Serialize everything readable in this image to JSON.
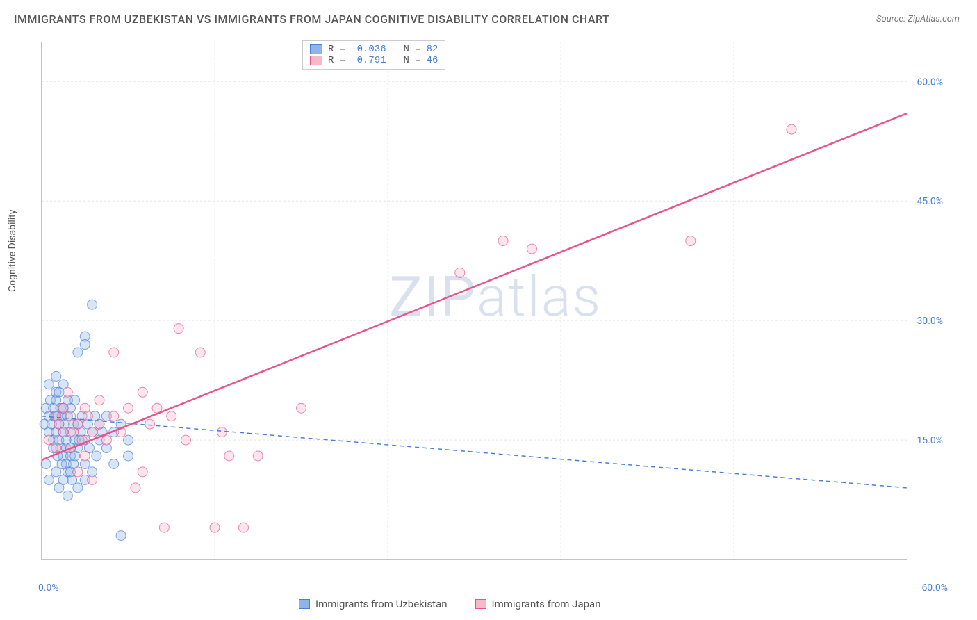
{
  "title": "IMMIGRANTS FROM UZBEKISTAN VS IMMIGRANTS FROM JAPAN COGNITIVE DISABILITY CORRELATION CHART",
  "source": "Source: ZipAtlas.com",
  "ylabel": "Cognitive Disability",
  "watermark": {
    "bold": "ZIP",
    "light": "atlas"
  },
  "chart": {
    "type": "scatter",
    "xlim": [
      0,
      60
    ],
    "ylim": [
      0,
      65
    ],
    "xtick_labels": [
      "0.0%",
      "60.0%"
    ],
    "ytick_labels": [
      "15.0%",
      "30.0%",
      "45.0%",
      "60.0%"
    ],
    "ytick_values": [
      15,
      30,
      45,
      60
    ],
    "grid_color": "#e5e5e5",
    "axis_color": "#888",
    "background_color": "#ffffff",
    "marker_radius": 7,
    "marker_opacity": 0.35,
    "label_fontsize": 14,
    "label_color": "#4a7fd8"
  },
  "series": [
    {
      "name": "Immigrants from Uzbekistan",
      "fill_color": "#8fb5e8",
      "stroke_color": "#4a7fd8",
      "R": "-0.036",
      "N": "82",
      "trend": {
        "x1": 0,
        "y1": 18,
        "x2": 60,
        "y2": 9,
        "dash": "6,5",
        "width": 1.5,
        "color": "#4a7fd8"
      },
      "points": [
        [
          0.2,
          17
        ],
        [
          0.3,
          19
        ],
        [
          0.5,
          16
        ],
        [
          0.5,
          18
        ],
        [
          0.6,
          20
        ],
        [
          0.7,
          17
        ],
        [
          0.8,
          15
        ],
        [
          0.8,
          19
        ],
        [
          0.9,
          18
        ],
        [
          1.0,
          16
        ],
        [
          1.0,
          20
        ],
        [
          1.0,
          21
        ],
        [
          1.1,
          18
        ],
        [
          1.2,
          17
        ],
        [
          1.2,
          15
        ],
        [
          1.3,
          19
        ],
        [
          1.3,
          14
        ],
        [
          1.4,
          18
        ],
        [
          1.5,
          16
        ],
        [
          1.5,
          13
        ],
        [
          1.5,
          22
        ],
        [
          1.6,
          17
        ],
        [
          1.7,
          15
        ],
        [
          1.7,
          12
        ],
        [
          1.8,
          18
        ],
        [
          1.8,
          11
        ],
        [
          2.0,
          16
        ],
        [
          2.0,
          13
        ],
        [
          2.0,
          19
        ],
        [
          2.1,
          10
        ],
        [
          2.2,
          17
        ],
        [
          2.3,
          15
        ],
        [
          2.3,
          20
        ],
        [
          2.5,
          26
        ],
        [
          2.5,
          14
        ],
        [
          2.5,
          17
        ],
        [
          2.7,
          16
        ],
        [
          2.8,
          18
        ],
        [
          3.0,
          12
        ],
        [
          3.0,
          15
        ],
        [
          3.0,
          28
        ],
        [
          3.0,
          27
        ],
        [
          3.2,
          17
        ],
        [
          3.3,
          14
        ],
        [
          3.5,
          16
        ],
        [
          3.5,
          32
        ],
        [
          3.5,
          11
        ],
        [
          3.7,
          18
        ],
        [
          3.8,
          13
        ],
        [
          4.0,
          15
        ],
        [
          4.0,
          17
        ],
        [
          4.2,
          16
        ],
        [
          4.5,
          14
        ],
        [
          4.5,
          18
        ],
        [
          5.0,
          16
        ],
        [
          5.0,
          12
        ],
        [
          5.5,
          17
        ],
        [
          5.5,
          3
        ],
        [
          6.0,
          15
        ],
        [
          6.0,
          13
        ],
        [
          0.3,
          12
        ],
        [
          0.5,
          10
        ],
        [
          1.0,
          11
        ],
        [
          1.2,
          9
        ],
        [
          1.5,
          10
        ],
        [
          1.8,
          8
        ],
        [
          2.0,
          11
        ],
        [
          2.2,
          12
        ],
        [
          2.5,
          9
        ],
        [
          3.0,
          10
        ],
        [
          0.5,
          22
        ],
        [
          1.0,
          23
        ],
        [
          1.2,
          21
        ],
        [
          1.5,
          19
        ],
        [
          1.8,
          20
        ],
        [
          0.8,
          14
        ],
        [
          1.1,
          13
        ],
        [
          1.4,
          12
        ],
        [
          1.7,
          14
        ],
        [
          2.0,
          14
        ],
        [
          2.3,
          13
        ],
        [
          2.6,
          15
        ]
      ]
    },
    {
      "name": "Immigrants from Japan",
      "fill_color": "#f7b8c9",
      "stroke_color": "#e8548a",
      "R": "0.791",
      "N": "46",
      "trend": {
        "x1": 0,
        "y1": 12.5,
        "x2": 60,
        "y2": 56,
        "dash": "none",
        "width": 2.5,
        "color": "#e8548a"
      },
      "points": [
        [
          0.5,
          15
        ],
        [
          1.0,
          14
        ],
        [
          1.0,
          18
        ],
        [
          1.2,
          17
        ],
        [
          1.5,
          16
        ],
        [
          1.5,
          19
        ],
        [
          1.8,
          21
        ],
        [
          2.0,
          18
        ],
        [
          2.0,
          14
        ],
        [
          2.2,
          16
        ],
        [
          2.5,
          17
        ],
        [
          2.5,
          11
        ],
        [
          2.8,
          15
        ],
        [
          3.0,
          19
        ],
        [
          3.0,
          13
        ],
        [
          3.2,
          18
        ],
        [
          3.5,
          16
        ],
        [
          3.5,
          10
        ],
        [
          4.0,
          17
        ],
        [
          4.0,
          20
        ],
        [
          4.5,
          15
        ],
        [
          5.0,
          26
        ],
        [
          5.0,
          18
        ],
        [
          5.5,
          16
        ],
        [
          6.0,
          19
        ],
        [
          6.5,
          9
        ],
        [
          7.0,
          21
        ],
        [
          7.5,
          17
        ],
        [
          8.0,
          19
        ],
        [
          8.5,
          4
        ],
        [
          9.0,
          18
        ],
        [
          9.5,
          29
        ],
        [
          10.0,
          15
        ],
        [
          11.0,
          26
        ],
        [
          12.0,
          4
        ],
        [
          12.5,
          16
        ],
        [
          13.0,
          13
        ],
        [
          14.0,
          4
        ],
        [
          15.0,
          13
        ],
        [
          18.0,
          19
        ],
        [
          29.0,
          36
        ],
        [
          32.0,
          40
        ],
        [
          34.0,
          39
        ],
        [
          45.0,
          40
        ],
        [
          52.0,
          54
        ],
        [
          7.0,
          11
        ]
      ]
    }
  ],
  "bottom_legend": [
    {
      "label": "Immigrants from Uzbekistan",
      "fill": "#8fb5e8",
      "stroke": "#4a7fd8"
    },
    {
      "label": "Immigrants from Japan",
      "fill": "#f7b8c9",
      "stroke": "#e8548a"
    }
  ]
}
